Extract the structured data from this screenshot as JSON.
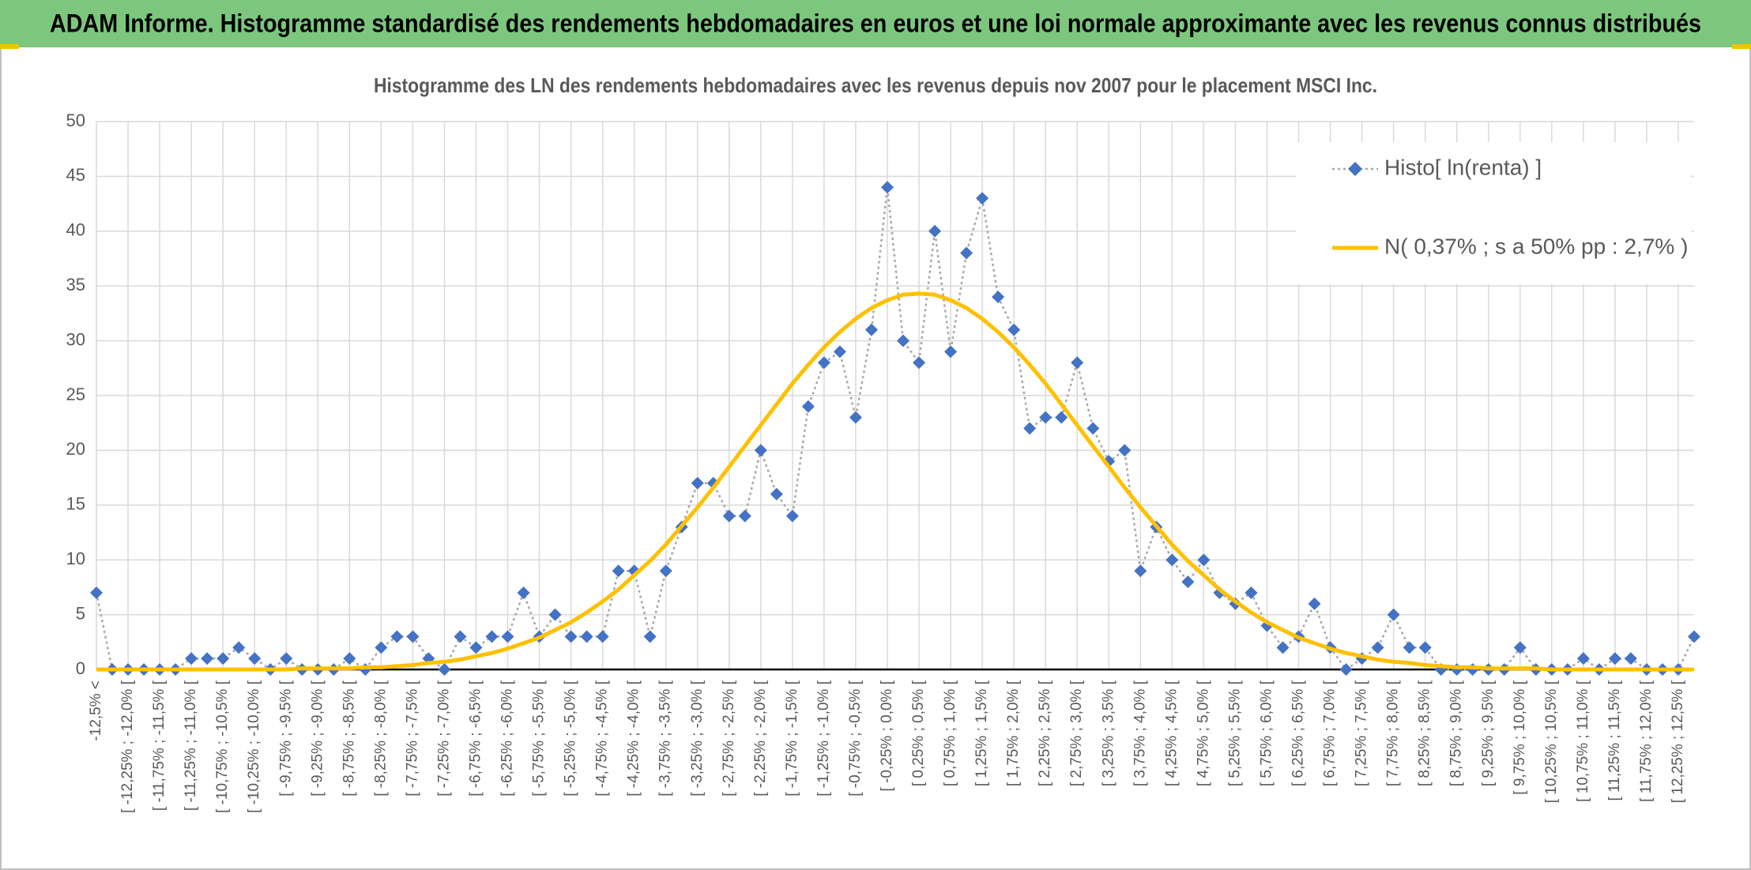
{
  "header": {
    "title": "ADAM Informe. Histogramme standardisé des rendements hebdomadaires en euros et une loi normale approximante avec les revenus connus distribués"
  },
  "chart_data": {
    "type": "line",
    "title": "Histogramme des LN des rendements hebdomadaires avec les revenus depuis nov 2007 pour le placement MSCI Inc.",
    "categories": [
      "-12,5% <",
      null,
      "[ -12,25% ; -12,0% [",
      null,
      "[ -11,75% ; -11,5% [",
      null,
      "[ -11,25% ; -11,0% [",
      null,
      "[ -10,75% ; -10,5% [",
      null,
      "[ -10,25% ; -10,0% [",
      null,
      "[ -9,75% ; -9,5% [",
      null,
      "[ -9,25% ; -9,0% [",
      null,
      "[ -8,75% ; -8,5% [",
      null,
      "[ -8,25% ; -8,0% [",
      null,
      "[ -7,75% ; -7,5% [",
      null,
      "[ -7,25% ; -7,0% [",
      null,
      "[ -6,75% ; -6,5% [",
      null,
      "[ -6,25% ; -6,0% [",
      null,
      "[ -5,75% ; -5,5% [",
      null,
      "[ -5,25% ; -5,0% [",
      null,
      "[ -4,75% ; -4,5% [",
      null,
      "[ -4,25% ; -4,0% [",
      null,
      "[ -3,75% ; -3,5% [",
      null,
      "[ -3,25% ; -3,0% [",
      null,
      "[ -2,75% ; -2,5% [",
      null,
      "[ -2,25% ; -2,0% [",
      null,
      "[ -1,75% ; -1,5% [",
      null,
      "[ -1,25% ; -1,0% [",
      null,
      "[ -0,75% ; -0,5% [",
      null,
      "[ -0,25% ; 0,0% [",
      null,
      "[ 0,25% ; 0,5% [",
      null,
      "[ 0,75% ; 1,0% [",
      null,
      "[ 1,25% ; 1,5% [",
      null,
      "[ 1,75% ; 2,0% [",
      null,
      "[ 2,25% ; 2,5% [",
      null,
      "[ 2,75% ; 3,0% [",
      null,
      "[ 3,25% ; 3,5% [",
      null,
      "[ 3,75% ; 4,0% [",
      null,
      "[ 4,25% ; 4,5% [",
      null,
      "[ 4,75% ; 5,0% [",
      null,
      "[ 5,25% ; 5,5% [",
      null,
      "[ 5,75% ; 6,0% [",
      null,
      "[ 6,25% ; 6,5% [",
      null,
      "[ 6,75% ; 7,0% [",
      null,
      "[ 7,25% ; 7,5% [",
      null,
      "[ 7,75% ; 8,0% [",
      null,
      "[ 8,25% ; 8,5% [",
      null,
      "[ 8,75% ; 9,0% [",
      null,
      "[ 9,25% ; 9,5% [",
      null,
      "[ 9,75% ; 10,0% [",
      null,
      "[ 10,25% ; 10,5% [",
      null,
      "[ 10,75% ; 11,0% [",
      null,
      "[ 11,25% ; 11,5% [",
      null,
      "[ 11,75% ; 12,0% [",
      null,
      "[ 12,25% ; 12,5% [",
      null
    ],
    "series": [
      {
        "name": "Histo[ ln(renta) ]",
        "color": "#4472c4",
        "line_color": "#a6a6a6",
        "values": [
          7,
          0,
          0,
          0,
          0,
          0,
          1,
          1,
          1,
          2,
          1,
          0,
          1,
          0,
          0,
          0,
          1,
          0,
          2,
          3,
          3,
          1,
          0,
          3,
          2,
          3,
          3,
          7,
          3,
          5,
          3,
          3,
          3,
          9,
          9,
          3,
          9,
          13,
          17,
          17,
          14,
          14,
          20,
          16,
          14,
          24,
          28,
          29,
          23,
          31,
          44,
          30,
          28,
          40,
          29,
          38,
          43,
          34,
          31,
          22,
          23,
          23,
          28,
          22,
          19,
          20,
          9,
          13,
          10,
          8,
          10,
          7,
          6,
          7,
          4,
          2,
          3,
          6,
          2,
          0,
          1,
          2,
          5,
          2,
          2,
          0,
          0,
          0,
          0,
          0,
          2,
          0,
          0,
          0,
          1,
          0,
          1,
          1,
          0,
          0,
          0,
          3
        ]
      },
      {
        "name": "N( 0,37% ; s a 50% pp : 2,7% )",
        "color": "#ffc000",
        "values": [
          0,
          0,
          0,
          0,
          0,
          0,
          0,
          0,
          0,
          0,
          0,
          0,
          0,
          0.1,
          0.1,
          0.1,
          0.1,
          0.2,
          0.2,
          0.3,
          0.4,
          0.6,
          0.7,
          0.9,
          1.2,
          1.5,
          1.9,
          2.4,
          2.9,
          3.6,
          4.3,
          5.2,
          6.2,
          7.3,
          8.6,
          9.9,
          11.4,
          13.1,
          14.8,
          16.6,
          18.5,
          20.4,
          22.3,
          24.2,
          26.1,
          27.8,
          29.4,
          30.8,
          32.0,
          33.0,
          33.7,
          34.2,
          34.3,
          34.2,
          33.7,
          33.0,
          32.0,
          30.8,
          29.4,
          27.8,
          26.1,
          24.2,
          22.3,
          20.4,
          18.5,
          16.6,
          14.8,
          13.1,
          11.4,
          9.9,
          8.6,
          7.3,
          6.2,
          5.2,
          4.3,
          3.6,
          2.9,
          2.4,
          1.9,
          1.5,
          1.2,
          0.9,
          0.7,
          0.6,
          0.4,
          0.3,
          0.2,
          0.2,
          0.1,
          0.1,
          0.1,
          0.1,
          0,
          0,
          0,
          0,
          0,
          0,
          0,
          0,
          0,
          0
        ]
      }
    ],
    "ylim": [
      0,
      50
    ],
    "yticks": [
      0,
      5,
      10,
      15,
      20,
      25,
      30,
      35,
      40,
      45,
      50
    ],
    "grid": true,
    "legend": "upper right"
  }
}
